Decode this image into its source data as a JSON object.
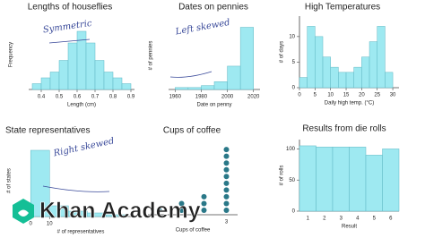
{
  "chart_data": [
    {
      "type": "histogram",
      "title": "Lengths of houseflies",
      "x_label": "Length (cm)",
      "y_label": "Frequency",
      "bins": [
        0.35,
        0.4,
        0.45,
        0.5,
        0.55,
        0.6,
        0.65,
        0.7,
        0.75,
        0.8,
        0.85,
        0.9
      ],
      "counts": [
        1,
        2,
        3,
        5,
        8,
        10,
        8,
        5,
        3,
        2,
        1
      ],
      "xlim": [
        0.33,
        0.92
      ],
      "xticks": [
        0.4,
        0.5,
        0.6,
        0.7,
        0.8,
        0.9
      ],
      "ylim": [
        0,
        12
      ],
      "color": "#9ee9f1",
      "annotation": "Symmetric"
    },
    {
      "type": "histogram",
      "title": "Dates on pennies",
      "x_label": "Date on penny",
      "y_label": "# of pennies",
      "bins": [
        1960,
        1970,
        1980,
        1990,
        2000,
        2010,
        2020
      ],
      "counts": [
        1,
        1,
        2,
        4,
        12,
        32
      ],
      "xlim": [
        1955,
        2025
      ],
      "xticks": [
        1960,
        1980,
        2000,
        2020
      ],
      "ylim": [
        0,
        35
      ],
      "color": "#9ee9f1",
      "annotation": "Left skewed"
    },
    {
      "type": "histogram",
      "title": "High Temperatures",
      "x_label": "Daily high temp. (°C)",
      "y_label": "# of days",
      "bins": [
        0,
        2.5,
        5,
        7.5,
        10,
        12.5,
        15,
        17.5,
        20,
        22.5,
        25,
        27.5,
        30
      ],
      "counts": [
        2,
        12,
        10,
        6,
        4,
        3,
        3,
        4,
        6,
        9,
        12,
        3
      ],
      "xlim": [
        0,
        32
      ],
      "xticks": [
        0,
        5,
        10,
        15,
        20,
        25,
        30
      ],
      "ylim": [
        0,
        14
      ],
      "yticks": [
        0,
        5,
        10
      ],
      "color": "#9ee9f1"
    },
    {
      "type": "histogram",
      "title": "State representatives",
      "x_label": "# of representatives",
      "y_label": "# of states",
      "bins": [
        0,
        10,
        20,
        30,
        40,
        50
      ],
      "counts": [
        37,
        6,
        3,
        2,
        1
      ],
      "xlim": [
        -2,
        55
      ],
      "xticks": [
        0,
        10
      ],
      "ylim": [
        0,
        40
      ],
      "color": "#9ee9f1",
      "annotation": "Right skewed"
    },
    {
      "type": "dot",
      "title": "Cups of coffee",
      "x_label": "Cups of coffee",
      "categories": [
        null,
        null,
        null,
        "3"
      ],
      "values": [
        1,
        2,
        3,
        10
      ],
      "ylim": [
        0,
        10
      ],
      "color": "#2a7888"
    },
    {
      "type": "bar",
      "title": "Results from die rolls",
      "x_label": "Result",
      "y_label": "# of rolls",
      "categories": [
        "1",
        "2",
        "3",
        "4",
        "5",
        "6"
      ],
      "values": [
        105,
        103,
        103,
        103,
        90,
        100
      ],
      "ylim": [
        0,
        115
      ],
      "yticks": [
        0,
        50,
        100
      ],
      "color": "#9ee9f1"
    }
  ],
  "brand": {
    "name": "Khan Academy"
  }
}
